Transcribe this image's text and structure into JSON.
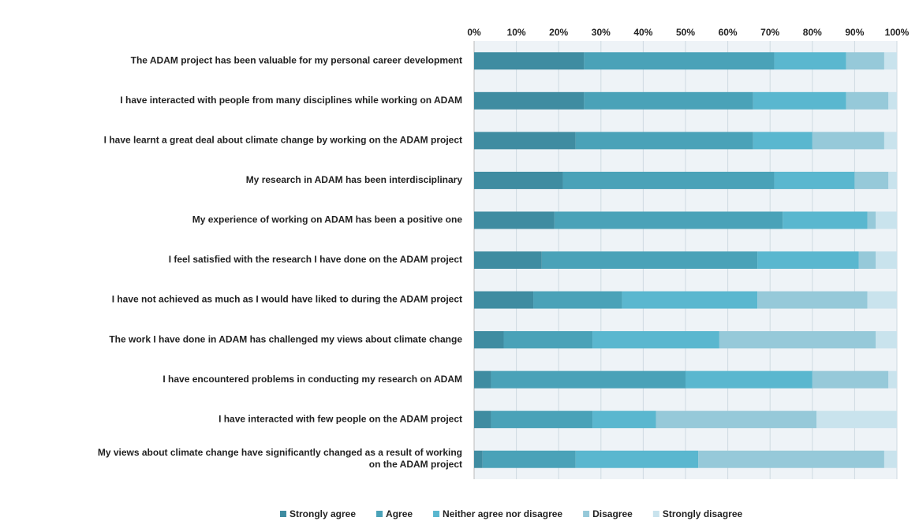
{
  "chart_data": {
    "type": "stacked-barh",
    "categories": [
      "The ADAM project has been valuable for my personal career development",
      "I have interacted with people from many disciplines while working on ADAM",
      "I have learnt a great deal about climate change by working on the ADAM project",
      "My research in ADAM has been interdisciplinary",
      "My experience of working on ADAM has been a positive one",
      "I feel satisfied with the research I have done on the ADAM project",
      "I have not achieved as much as I would have liked to during the ADAM project",
      "The work I have done in ADAM has challenged my views about climate change",
      "I have encountered problems in conducting my research on ADAM",
      "I have interacted with few people on the ADAM project",
      "My views about climate change have significantly changed as a result of working\non the ADAM project"
    ],
    "series": [
      {
        "name": "Strongly agree",
        "color": "#3f8ca1",
        "values": [
          26,
          26,
          24,
          21,
          19,
          16,
          14,
          7,
          4,
          4,
          2
        ]
      },
      {
        "name": "Agree",
        "color": "#4aa2b8",
        "values": [
          45,
          40,
          42,
          50,
          54,
          51,
          21,
          21,
          46,
          24,
          22
        ]
      },
      {
        "name": "Neither agree nor disagree",
        "color": "#5ab7cf",
        "values": [
          17,
          22,
          14,
          19,
          20,
          24,
          32,
          30,
          30,
          15,
          29
        ]
      },
      {
        "name": "Disagree",
        "color": "#96c9d9",
        "values": [
          9,
          10,
          17,
          8,
          2,
          4,
          26,
          37,
          18,
          38,
          44
        ]
      },
      {
        "name": "Strongly disagree",
        "color": "#c9e3ed",
        "values": [
          3,
          2,
          3,
          2,
          5,
          5,
          7,
          5,
          2,
          19,
          3
        ]
      }
    ],
    "xlim": [
      0,
      100
    ],
    "xticks": [
      {
        "value": 0,
        "label": "0%"
      },
      {
        "value": 10,
        "label": "10%"
      },
      {
        "value": 20,
        "label": "20%"
      },
      {
        "value": 30,
        "label": "30%"
      },
      {
        "value": 40,
        "label": "40%"
      },
      {
        "value": 50,
        "label": "50%"
      },
      {
        "value": 60,
        "label": "60%"
      },
      {
        "value": 70,
        "label": "70%"
      },
      {
        "value": 80,
        "label": "80%"
      },
      {
        "value": 90,
        "label": "90%"
      },
      {
        "value": 100,
        "label": "100%"
      }
    ],
    "grid": true,
    "legend": "bottom"
  }
}
